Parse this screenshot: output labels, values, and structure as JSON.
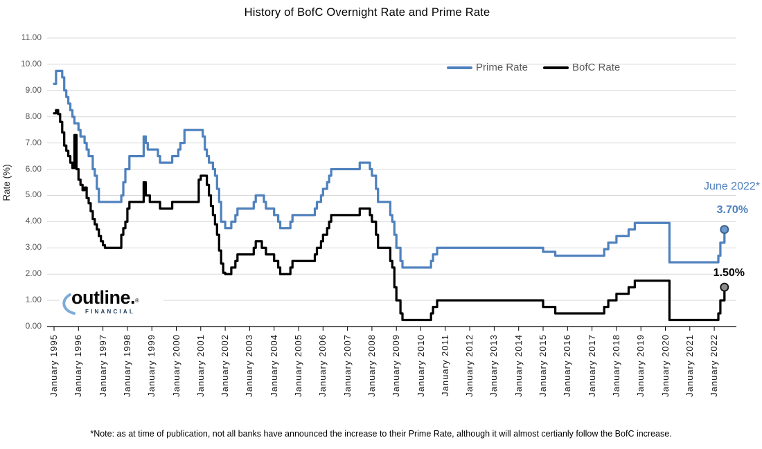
{
  "title": "History of BofC Overnight Rate and Prime Rate",
  "annotations": {
    "date_label": "June 2022*",
    "prime_value_label": "3.70%",
    "bofc_value_label": "1.50%"
  },
  "footnote": "*Note: as at time of publication, not all banks have announced the increase to their Prime Rate, although it will almost certianly follow the BofC increase.",
  "logo": {
    "word": "outline.",
    "registered": "®",
    "sub": "FINANCIAL",
    "arc_color": "#7fabd8"
  },
  "chart_data": {
    "type": "line",
    "title": "History of BofC Overnight Rate and Prime Rate",
    "xlabel": "",
    "ylabel": "Rate (%)",
    "ylim": [
      0,
      11
    ],
    "ytick_step": 1,
    "grid": "horizontal",
    "grid_color": "#d9d9d9",
    "legend_position": "top-right-inside",
    "ytick_labels": [
      "0.00",
      "1.00",
      "2.00",
      "3.00",
      "4.00",
      "5.00",
      "6.00",
      "7.00",
      "8.00",
      "9.00",
      "10.00",
      "11.00"
    ],
    "x_ticks": [
      "January 1995",
      "January 1996",
      "January 1997",
      "January 1998",
      "January 1999",
      "January 2000",
      "January 2001",
      "January 2002",
      "January 2003",
      "January 2004",
      "January 2005",
      "January 2006",
      "January 2007",
      "January 2008",
      "January 2009",
      "January 2010",
      "January 2011",
      "January 2012",
      "January 2013",
      "January 2014",
      "January 2015",
      "January 2016",
      "January 2017",
      "January 2018",
      "January 2019",
      "January 2020",
      "January 2021",
      "January 2022"
    ],
    "series": [
      {
        "id": "bofc-rate",
        "name": "BofC Rate",
        "color": "#000000",
        "marker_fill": "#8c8c8c",
        "marker_stroke": "#1a1a1a",
        "end_value": 1.5,
        "points": [
          [
            "1995-01",
            8.13
          ],
          [
            "1995-02",
            8.25
          ],
          [
            "1995-03",
            8.1
          ],
          [
            "1995-04",
            7.8
          ],
          [
            "1995-05",
            7.4
          ],
          [
            "1995-06",
            6.9
          ],
          [
            "1995-07",
            6.7
          ],
          [
            "1995-08",
            6.5
          ],
          [
            "1995-09",
            6.25
          ],
          [
            "1995-10",
            6.05
          ],
          [
            "1995-11",
            7.3
          ],
          [
            "1995-12",
            6.0
          ],
          [
            "1996-01",
            5.6
          ],
          [
            "1996-02",
            5.4
          ],
          [
            "1996-03",
            5.2
          ],
          [
            "1996-04",
            5.3
          ],
          [
            "1996-05",
            4.9
          ],
          [
            "1996-06",
            4.7
          ],
          [
            "1996-07",
            4.4
          ],
          [
            "1996-08",
            4.1
          ],
          [
            "1996-09",
            3.9
          ],
          [
            "1996-10",
            3.7
          ],
          [
            "1996-11",
            3.45
          ],
          [
            "1996-12",
            3.25
          ],
          [
            "1997-01",
            3.1
          ],
          [
            "1997-02",
            3.0
          ],
          [
            "1997-10",
            3.5
          ],
          [
            "1997-11",
            3.75
          ],
          [
            "1997-12",
            4.0
          ],
          [
            "1998-01",
            4.5
          ],
          [
            "1998-02",
            4.75
          ],
          [
            "1998-09",
            5.5
          ],
          [
            "1998-10",
            5.0
          ],
          [
            "1998-12",
            4.75
          ],
          [
            "1999-05",
            4.5
          ],
          [
            "1999-11",
            4.75
          ],
          [
            "2000-12",
            5.6
          ],
          [
            "2001-01",
            5.75
          ],
          [
            "2001-04",
            5.4
          ],
          [
            "2001-05",
            5.0
          ],
          [
            "2001-06",
            4.6
          ],
          [
            "2001-07",
            4.25
          ],
          [
            "2001-08",
            3.9
          ],
          [
            "2001-09",
            3.5
          ],
          [
            "2001-10",
            2.9
          ],
          [
            "2001-11",
            2.4
          ],
          [
            "2001-12",
            2.05
          ],
          [
            "2002-01",
            2.0
          ],
          [
            "2002-04",
            2.25
          ],
          [
            "2002-06",
            2.5
          ],
          [
            "2002-07",
            2.75
          ],
          [
            "2003-03",
            3.0
          ],
          [
            "2003-04",
            3.25
          ],
          [
            "2003-07",
            3.0
          ],
          [
            "2003-09",
            2.75
          ],
          [
            "2004-01",
            2.5
          ],
          [
            "2004-03",
            2.25
          ],
          [
            "2004-04",
            2.0
          ],
          [
            "2004-09",
            2.25
          ],
          [
            "2004-10",
            2.5
          ],
          [
            "2005-09",
            2.75
          ],
          [
            "2005-10",
            3.0
          ],
          [
            "2005-12",
            3.25
          ],
          [
            "2006-01",
            3.5
          ],
          [
            "2006-03",
            3.75
          ],
          [
            "2006-04",
            4.0
          ],
          [
            "2006-05",
            4.25
          ],
          [
            "2007-07",
            4.5
          ],
          [
            "2007-12",
            4.25
          ],
          [
            "2008-01",
            4.0
          ],
          [
            "2008-03",
            3.5
          ],
          [
            "2008-04",
            3.0
          ],
          [
            "2008-10",
            2.5
          ],
          [
            "2008-11",
            2.25
          ],
          [
            "2008-12",
            1.5
          ],
          [
            "2009-01",
            1.0
          ],
          [
            "2009-03",
            0.5
          ],
          [
            "2009-04",
            0.25
          ],
          [
            "2010-06",
            0.5
          ],
          [
            "2010-07",
            0.75
          ],
          [
            "2010-09",
            1.0
          ],
          [
            "2015-01",
            0.75
          ],
          [
            "2015-07",
            0.5
          ],
          [
            "2017-07",
            0.75
          ],
          [
            "2017-09",
            1.0
          ],
          [
            "2018-01",
            1.25
          ],
          [
            "2018-07",
            1.5
          ],
          [
            "2018-10",
            1.75
          ],
          [
            "2020-03",
            0.25
          ],
          [
            "2022-03",
            0.5
          ],
          [
            "2022-04",
            1.0
          ],
          [
            "2022-06",
            1.5
          ]
        ]
      },
      {
        "id": "prime-rate",
        "name": "Prime Rate",
        "color": "#4f81bd",
        "marker_fill": "#6e9ad0",
        "marker_stroke": "#3a618f",
        "end_value": 3.7,
        "points": [
          [
            "1995-01",
            9.25
          ],
          [
            "1995-02",
            9.75
          ],
          [
            "1995-05",
            9.5
          ],
          [
            "1995-06",
            9.0
          ],
          [
            "1995-07",
            8.75
          ],
          [
            "1995-08",
            8.5
          ],
          [
            "1995-09",
            8.25
          ],
          [
            "1995-10",
            8.0
          ],
          [
            "1995-11",
            7.75
          ],
          [
            "1996-01",
            7.5
          ],
          [
            "1996-02",
            7.25
          ],
          [
            "1996-04",
            7.0
          ],
          [
            "1996-05",
            6.75
          ],
          [
            "1996-06",
            6.5
          ],
          [
            "1996-08",
            6.0
          ],
          [
            "1996-09",
            5.75
          ],
          [
            "1996-10",
            5.25
          ],
          [
            "1996-11",
            4.75
          ],
          [
            "1997-10",
            5.0
          ],
          [
            "1997-11",
            5.5
          ],
          [
            "1997-12",
            6.0
          ],
          [
            "1998-02",
            6.5
          ],
          [
            "1998-09",
            7.25
          ],
          [
            "1998-10",
            7.0
          ],
          [
            "1998-11",
            6.75
          ],
          [
            "1999-04",
            6.5
          ],
          [
            "1999-05",
            6.25
          ],
          [
            "1999-11",
            6.5
          ],
          [
            "2000-02",
            6.75
          ],
          [
            "2000-03",
            7.0
          ],
          [
            "2000-05",
            7.5
          ],
          [
            "2001-02",
            7.25
          ],
          [
            "2001-03",
            6.75
          ],
          [
            "2001-04",
            6.5
          ],
          [
            "2001-05",
            6.25
          ],
          [
            "2001-07",
            6.0
          ],
          [
            "2001-08",
            5.75
          ],
          [
            "2001-09",
            5.25
          ],
          [
            "2001-10",
            4.75
          ],
          [
            "2001-11",
            4.0
          ],
          [
            "2002-01",
            3.75
          ],
          [
            "2002-04",
            4.0
          ],
          [
            "2002-06",
            4.25
          ],
          [
            "2002-07",
            4.5
          ],
          [
            "2003-03",
            4.75
          ],
          [
            "2003-04",
            5.0
          ],
          [
            "2003-08",
            4.75
          ],
          [
            "2003-09",
            4.5
          ],
          [
            "2004-01",
            4.25
          ],
          [
            "2004-03",
            4.0
          ],
          [
            "2004-04",
            3.75
          ],
          [
            "2004-09",
            4.0
          ],
          [
            "2004-10",
            4.25
          ],
          [
            "2005-09",
            4.5
          ],
          [
            "2005-10",
            4.75
          ],
          [
            "2005-12",
            5.0
          ],
          [
            "2006-01",
            5.25
          ],
          [
            "2006-03",
            5.5
          ],
          [
            "2006-04",
            5.75
          ],
          [
            "2006-05",
            6.0
          ],
          [
            "2007-07",
            6.25
          ],
          [
            "2007-12",
            6.0
          ],
          [
            "2008-01",
            5.75
          ],
          [
            "2008-03",
            5.25
          ],
          [
            "2008-04",
            4.75
          ],
          [
            "2008-10",
            4.25
          ],
          [
            "2008-11",
            4.0
          ],
          [
            "2008-12",
            3.5
          ],
          [
            "2009-01",
            3.0
          ],
          [
            "2009-03",
            2.5
          ],
          [
            "2009-04",
            2.25
          ],
          [
            "2010-06",
            2.5
          ],
          [
            "2010-07",
            2.75
          ],
          [
            "2010-09",
            3.0
          ],
          [
            "2015-01",
            2.85
          ],
          [
            "2015-07",
            2.7
          ],
          [
            "2017-07",
            2.95
          ],
          [
            "2017-09",
            3.2
          ],
          [
            "2018-01",
            3.45
          ],
          [
            "2018-07",
            3.7
          ],
          [
            "2018-10",
            3.95
          ],
          [
            "2020-03",
            2.45
          ],
          [
            "2022-03",
            2.7
          ],
          [
            "2022-04",
            3.2
          ],
          [
            "2022-06",
            3.7
          ]
        ]
      }
    ]
  }
}
